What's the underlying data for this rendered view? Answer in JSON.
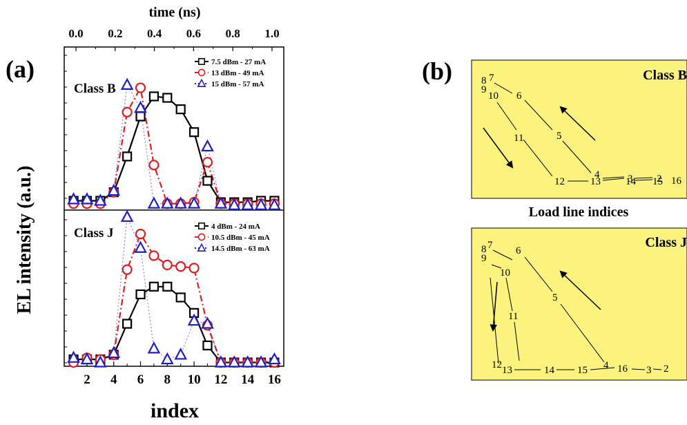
{
  "panel_a": {
    "label": "(a)",
    "top_axis_title": "time (ns)",
    "y_axis_title": "EL intensity (a.u.)",
    "x_axis_title": "index",
    "top_ticks": [
      "0.0",
      "0.2",
      "0.4",
      "0.6",
      "0.8",
      "1.0"
    ],
    "bottom_ticks": [
      "2",
      "4",
      "6",
      "8",
      "10",
      "12",
      "14",
      "16"
    ]
  },
  "panel_b": {
    "label": "(b)",
    "middle_caption": "Load line indices",
    "top_class": "Class B",
    "bottom_class": "Class J"
  },
  "chart_data": [
    {
      "type": "line",
      "title": "Class B",
      "xlabel": "index",
      "x2label": "time (ns)",
      "ylabel": "EL intensity (a.u.)",
      "x": [
        1,
        2,
        3,
        4,
        5,
        6,
        7,
        8,
        9,
        10,
        11,
        12,
        13,
        14,
        15,
        16
      ],
      "xlim": [
        0.3,
        16.7
      ],
      "ylim": [
        0,
        1
      ],
      "x2lim": [
        -0.06,
        1.06
      ],
      "x2_ticks": [
        0.0,
        0.2,
        0.4,
        0.6,
        0.8,
        1.0
      ],
      "legend_position": "top-right",
      "series": [
        {
          "name": "7.5 dBm - 27 mA",
          "color": "#000000",
          "marker": "square",
          "line": "solid",
          "values": [
            0.06,
            0.06,
            0.06,
            0.12,
            0.37,
            0.65,
            0.79,
            0.78,
            0.7,
            0.54,
            0.2,
            0.05,
            0.05,
            0.05,
            0.06,
            0.06
          ]
        },
        {
          "name": "13 dBm - 49 mA",
          "color": "#e41a1c",
          "marker": "circle",
          "line": "dashdot",
          "values": [
            0.04,
            0.04,
            0.04,
            0.12,
            0.68,
            0.85,
            0.31,
            0.04,
            0.04,
            0.05,
            0.33,
            0.04,
            0.04,
            0.04,
            0.04,
            0.04
          ]
        },
        {
          "name": "15 dBm - 57 mA",
          "color": "#1e1ec8",
          "marker": "triangle",
          "line": "dotted",
          "values": [
            0.07,
            0.07,
            0.06,
            0.13,
            0.87,
            0.71,
            0.04,
            0.04,
            0.04,
            0.04,
            0.44,
            0.04,
            0.03,
            0.03,
            0.03,
            0.03
          ]
        }
      ]
    },
    {
      "type": "line",
      "title": "Class J",
      "xlabel": "index",
      "ylabel": "EL intensity (a.u.)",
      "x": [
        1,
        2,
        3,
        4,
        5,
        6,
        7,
        8,
        9,
        10,
        11,
        12,
        13,
        14,
        15,
        16
      ],
      "xlim": [
        0.3,
        16.7
      ],
      "ylim": [
        0,
        1
      ],
      "legend_position": "top-right",
      "series": [
        {
          "name": "4 dBm - 24 mA",
          "color": "#000000",
          "marker": "square",
          "line": "solid",
          "values": [
            0.04,
            0.04,
            0.04,
            0.07,
            0.27,
            0.46,
            0.51,
            0.51,
            0.44,
            0.34,
            0.13,
            0.02,
            0.02,
            0.02,
            0.02,
            0.02
          ]
        },
        {
          "name": "10.5 dBm - 45 mA",
          "color": "#e41a1c",
          "marker": "circle",
          "line": "dashdot",
          "values": [
            0.02,
            0.05,
            0.04,
            0.07,
            0.62,
            0.85,
            0.71,
            0.65,
            0.64,
            0.63,
            0.26,
            0.02,
            0.02,
            0.02,
            0.02,
            0.02
          ]
        },
        {
          "name": "14.5 dBm - 63 mA",
          "color": "#1e1ec8",
          "marker": "triangle",
          "line": "dotted",
          "values": [
            0.05,
            0.04,
            0.02,
            0.08,
            0.96,
            0.76,
            0.11,
            0.04,
            0.07,
            0.29,
            0.27,
            0.02,
            0.02,
            0.02,
            0.02,
            0.04
          ]
        }
      ]
    }
  ]
}
